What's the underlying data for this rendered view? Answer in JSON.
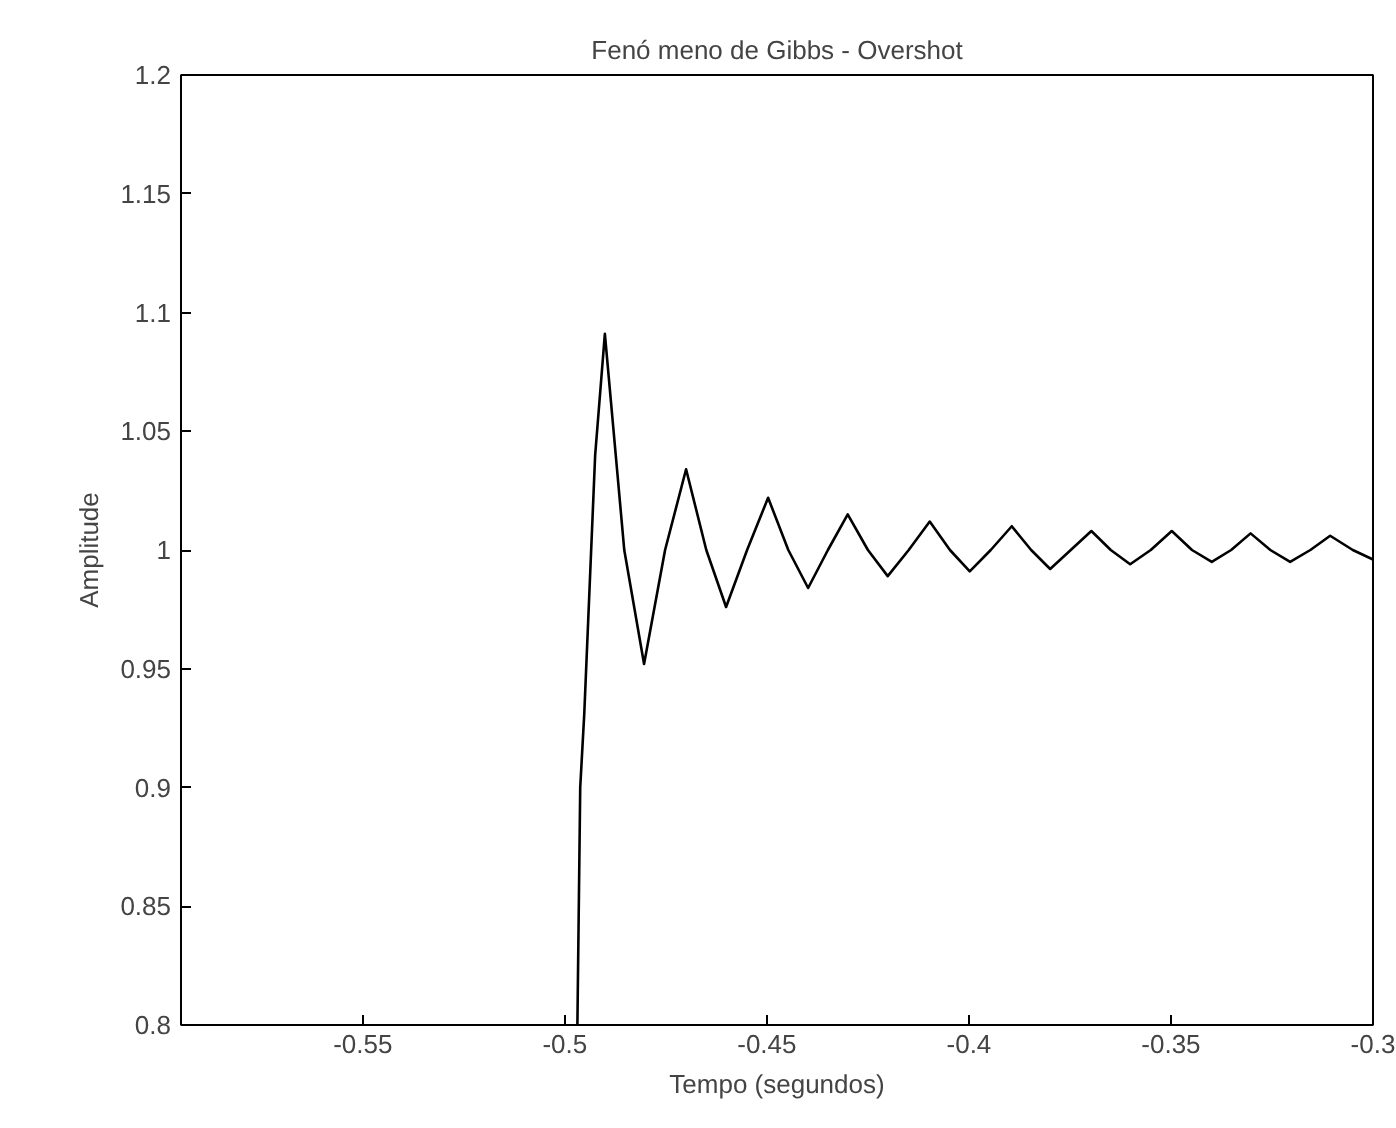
{
  "chart_data": {
    "type": "line",
    "title": "Fenó meno de Gibbs - Overshot",
    "xlabel": "Tempo (segundos)",
    "ylabel": "Amplitude",
    "xlim": [
      -0.595,
      -0.3
    ],
    "ylim": [
      0.8,
      1.2
    ],
    "xticks": [
      -0.55,
      -0.5,
      -0.45,
      -0.4,
      -0.35,
      -0.3
    ],
    "yticks": [
      0.8,
      0.85,
      0.9,
      0.95,
      1,
      1.05,
      1.1,
      1.15,
      1.2
    ],
    "grid": false,
    "marker": "none",
    "line_style": "solid",
    "series": [
      {
        "color": "#000000",
        "x": [
          -0.4969,
          -0.4962,
          -0.4952,
          -0.4925,
          -0.4901,
          -0.4853,
          -0.4804,
          -0.4752,
          -0.47,
          -0.465,
          -0.4601,
          -0.4549,
          -0.4497,
          -0.4447,
          -0.4398,
          -0.4349,
          -0.43,
          -0.425,
          -0.4201,
          -0.4149,
          -0.4097,
          -0.4047,
          -0.3998,
          -0.3946,
          -0.3894,
          -0.3846,
          -0.3799,
          -0.3748,
          -0.3697,
          -0.3649,
          -0.3601,
          -0.355,
          -0.3498,
          -0.3448,
          -0.3399,
          -0.3351,
          -0.3303,
          -0.3254,
          -0.3205,
          -0.3155,
          -0.3106,
          -0.305,
          -0.3
        ],
        "values": [
          0.8,
          0.9,
          0.931,
          1.04,
          1.091,
          1.0,
          0.952,
          1.0,
          1.034,
          1.0,
          0.976,
          1.0,
          1.022,
          1.0,
          0.984,
          1.0,
          1.015,
          1.0,
          0.989,
          1.0,
          1.012,
          1.0,
          0.991,
          1.0,
          1.01,
          1.0,
          0.992,
          1.0,
          1.008,
          1.0,
          0.994,
          1.0,
          1.008,
          1.0,
          0.995,
          1.0,
          1.007,
          1.0,
          0.995,
          1.0,
          1.006,
          1.0,
          0.996
        ]
      }
    ]
  }
}
